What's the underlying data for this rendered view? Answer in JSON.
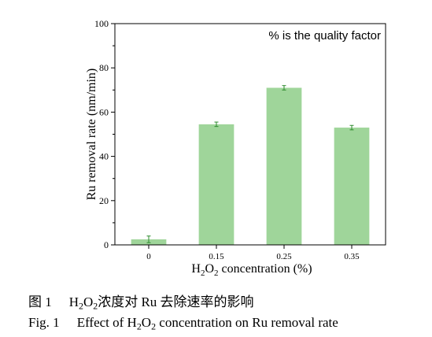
{
  "chart_data": {
    "type": "bar",
    "categories": [
      "0",
      "0.15",
      "0.25",
      "0.35"
    ],
    "values": [
      2.5,
      54.5,
      71,
      53
    ],
    "errors": [
      1.5,
      1.0,
      1.0,
      1.0
    ],
    "ylabel": "Ru removal rate (nm/min)",
    "xlabel_parts": [
      "H",
      "2",
      "O",
      "2",
      " concentration (%)"
    ],
    "ylim": [
      0,
      100
    ],
    "yticks": [
      0,
      20,
      40,
      60,
      80,
      100
    ],
    "annotation": "% is the quality factor",
    "bar_color": "#9fd59a",
    "error_color": "#2e8b2e"
  },
  "captions": {
    "cn": {
      "num": "图 1",
      "t1": "H",
      "s1": "2",
      "t2": "O",
      "s2": "2",
      "t3": "浓度对 Ru 去除速率的影响"
    },
    "en": {
      "num": "Fig. 1",
      "t1": "Effect of H",
      "s1": "2",
      "t2": "O",
      "s2": "2",
      "t3": " concentration on Ru removal rate"
    }
  }
}
